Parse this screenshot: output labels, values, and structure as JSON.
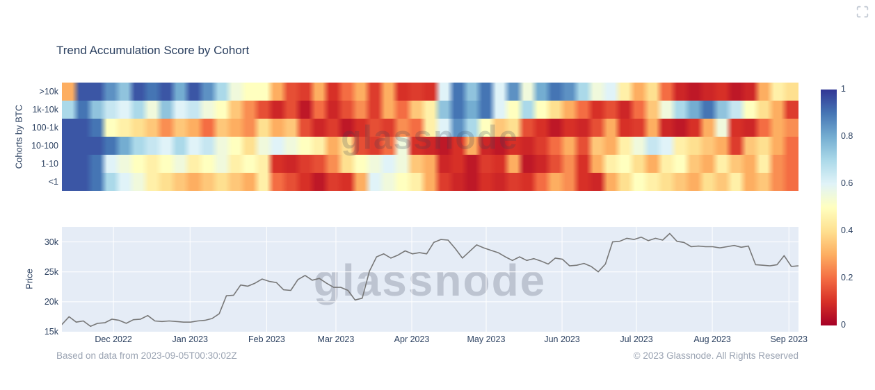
{
  "title": "Trend Accumulation Score by Cohort",
  "watermark": "glassnode",
  "footer": {
    "left": "Based on data from 2023-09-05T00:30:02Z",
    "right": "© 2023 Glassnode. All Rights Reserved"
  },
  "controls": {
    "fullscreen_icon": "corner-brackets"
  },
  "colors": {
    "title_text": "#2a3f5f",
    "tick_text": "#2a3f5f",
    "muted_text": "#9aa3b2",
    "plot_bg": "#e5ecf6",
    "grid": "#ffffff",
    "price_line": "#777777"
  },
  "chart_data": [
    {
      "type": "heatmap",
      "title": "Trend Accumulation Score by Cohort",
      "ylabel": "Cohorts by BTC",
      "rows": [
        ">10k",
        "1k-10k",
        "100-1k",
        "10-100",
        "1-10",
        "<1"
      ],
      "x_range": [
        "Nov 2022",
        "Sep 2023"
      ],
      "value_range": [
        0,
        1
      ],
      "colorscale_name": "RdYlBu",
      "colorscale_stops": [
        "#a50026",
        "#d73027",
        "#f46d43",
        "#fdae61",
        "#fee090",
        "#ffffbf",
        "#e0f3f8",
        "#abd9e9",
        "#74add1",
        "#4575b4",
        "#313695"
      ],
      "colorbar_ticks": [
        {
          "label": "1",
          "v": 1.0
        },
        {
          "label": "0.8",
          "v": 0.8
        },
        {
          "label": "0.6",
          "v": 0.6
        },
        {
          "label": "0.4",
          "v": 0.4
        },
        {
          "label": "0.2",
          "v": 0.2
        },
        {
          "label": "0",
          "v": 0.0
        }
      ],
      "values": [
        [
          0.3,
          0.95,
          0.95,
          0.85,
          0.75,
          0.95,
          0.9,
          0.95,
          0.8,
          0.95,
          0.85,
          0.7,
          0.55,
          0.5,
          0.5,
          0.3,
          0.15,
          0.12,
          0.3,
          0.1,
          0.2,
          0.3,
          0.12,
          0.3,
          0.1,
          0.12,
          0.1,
          0.6,
          0.9,
          0.75,
          0.9,
          0.6,
          0.85,
          0.55,
          0.8,
          0.9,
          0.85,
          0.7,
          0.55,
          0.6,
          0.45,
          0.3,
          0.4,
          0.2,
          0.08,
          0.05,
          0.08,
          0.1,
          0.05,
          0.08,
          0.3,
          0.45,
          0.4
        ],
        [
          0.7,
          0.9,
          0.75,
          0.65,
          0.6,
          0.7,
          0.55,
          0.75,
          0.6,
          0.65,
          0.55,
          0.5,
          0.35,
          0.25,
          0.15,
          0.08,
          0.15,
          0.05,
          0.2,
          0.08,
          0.15,
          0.25,
          0.12,
          0.3,
          0.2,
          0.35,
          0.45,
          0.75,
          0.9,
          0.8,
          0.9,
          0.6,
          0.5,
          0.7,
          0.5,
          0.4,
          0.3,
          0.2,
          0.1,
          0.15,
          0.08,
          0.2,
          0.35,
          0.55,
          0.7,
          0.8,
          0.9,
          0.75,
          0.65,
          0.5,
          0.4,
          0.3,
          0.12
        ],
        [
          0.95,
          0.95,
          0.9,
          0.5,
          0.45,
          0.4,
          0.35,
          0.25,
          0.35,
          0.3,
          0.2,
          0.35,
          0.3,
          0.25,
          0.4,
          0.3,
          0.35,
          0.15,
          0.08,
          0.12,
          0.05,
          0.1,
          0.15,
          0.12,
          0.25,
          0.2,
          0.45,
          0.6,
          0.85,
          0.7,
          0.5,
          0.35,
          0.4,
          0.15,
          0.1,
          0.05,
          0.1,
          0.08,
          0.15,
          0.3,
          0.1,
          0.12,
          0.3,
          0.08,
          0.05,
          0.1,
          0.3,
          0.55,
          0.1,
          0.08,
          0.2,
          0.3,
          0.25
        ],
        [
          0.95,
          0.95,
          0.95,
          0.9,
          0.8,
          0.7,
          0.65,
          0.6,
          0.7,
          0.6,
          0.65,
          0.55,
          0.5,
          0.4,
          0.55,
          0.6,
          0.55,
          0.5,
          0.45,
          0.3,
          0.4,
          0.15,
          0.12,
          0.2,
          0.55,
          0.1,
          0.08,
          0.05,
          0.1,
          0.3,
          0.08,
          0.05,
          0.1,
          0.08,
          0.12,
          0.2,
          0.3,
          0.15,
          0.35,
          0.3,
          0.45,
          0.55,
          0.65,
          0.6,
          0.45,
          0.4,
          0.35,
          0.3,
          0.12,
          0.35,
          0.4,
          0.3,
          0.2
        ],
        [
          0.95,
          0.95,
          0.9,
          0.6,
          0.55,
          0.5,
          0.45,
          0.5,
          0.55,
          0.45,
          0.5,
          0.55,
          0.45,
          0.5,
          0.45,
          0.1,
          0.08,
          0.12,
          0.15,
          0.25,
          0.4,
          0.5,
          0.55,
          0.6,
          0.55,
          0.35,
          0.3,
          0.08,
          0.1,
          0.05,
          0.12,
          0.1,
          0.3,
          0.05,
          0.08,
          0.15,
          0.25,
          0.1,
          0.3,
          0.45,
          0.5,
          0.4,
          0.3,
          0.45,
          0.5,
          0.35,
          0.3,
          0.45,
          0.35,
          0.3,
          0.45,
          0.25,
          0.2
        ],
        [
          0.95,
          0.95,
          0.9,
          0.7,
          0.6,
          0.55,
          0.45,
          0.4,
          0.35,
          0.3,
          0.35,
          0.4,
          0.35,
          0.3,
          0.45,
          0.2,
          0.15,
          0.1,
          0.05,
          0.12,
          0.1,
          0.3,
          0.6,
          0.55,
          0.5,
          0.45,
          0.3,
          0.12,
          0.08,
          0.05,
          0.1,
          0.08,
          0.12,
          0.1,
          0.2,
          0.3,
          0.25,
          0.1,
          0.08,
          0.3,
          0.4,
          0.5,
          0.45,
          0.4,
          0.35,
          0.3,
          0.4,
          0.35,
          0.45,
          0.3,
          0.35,
          0.25,
          0.2
        ]
      ]
    },
    {
      "type": "line",
      "ylabel": "Price",
      "unit": "k USD",
      "ylim": [
        15,
        32.5
      ],
      "grid": true,
      "yticks": [
        {
          "label": "15k",
          "v": 15
        },
        {
          "label": "20k",
          "v": 20
        },
        {
          "label": "25k",
          "v": 25
        },
        {
          "label": "30k",
          "v": 30
        }
      ],
      "xticks": [
        {
          "label": "Dec 2022",
          "f": 0.07
        },
        {
          "label": "Jan 2023",
          "f": 0.174
        },
        {
          "label": "Feb 2023",
          "f": 0.278
        },
        {
          "label": "Mar 2023",
          "f": 0.372
        },
        {
          "label": "Apr 2023",
          "f": 0.475
        },
        {
          "label": "May 2023",
          "f": 0.576
        },
        {
          "label": "Jun 2023",
          "f": 0.679
        },
        {
          "label": "Jul 2023",
          "f": 0.78
        },
        {
          "label": "Aug 2023",
          "f": 0.883
        },
        {
          "label": "Sep 2023",
          "f": 0.987
        }
      ],
      "series": [
        {
          "name": "Price",
          "values": [
            16.2,
            17.5,
            16.6,
            16.8,
            15.9,
            16.4,
            16.5,
            17.1,
            16.9,
            16.4,
            17.0,
            17.1,
            17.7,
            16.8,
            16.7,
            16.8,
            16.7,
            16.6,
            16.6,
            16.8,
            16.9,
            17.2,
            18.0,
            21.0,
            21.1,
            22.8,
            22.6,
            23.1,
            23.8,
            23.4,
            23.2,
            22.0,
            21.9,
            23.7,
            24.4,
            23.6,
            23.9,
            23.1,
            22.4,
            22.4,
            21.9,
            20.3,
            20.6,
            25.1,
            27.5,
            28.0,
            27.3,
            27.8,
            28.5,
            28.0,
            28.2,
            28.0,
            29.9,
            30.4,
            30.3,
            28.9,
            27.3,
            28.4,
            29.5,
            29.0,
            28.6,
            28.2,
            27.5,
            26.9,
            27.5,
            26.9,
            27.2,
            26.8,
            26.3,
            27.3,
            27.1,
            26.0,
            26.1,
            26.4,
            25.9,
            25.0,
            26.3,
            30.0,
            30.1,
            30.6,
            30.4,
            30.8,
            30.2,
            30.6,
            30.3,
            31.4,
            30.1,
            29.9,
            29.2,
            29.3,
            29.2,
            29.2,
            29.0,
            29.2,
            29.4,
            29.1,
            29.3,
            26.2,
            26.1,
            26.0,
            26.2,
            27.7,
            25.9,
            26.0
          ]
        }
      ]
    }
  ]
}
